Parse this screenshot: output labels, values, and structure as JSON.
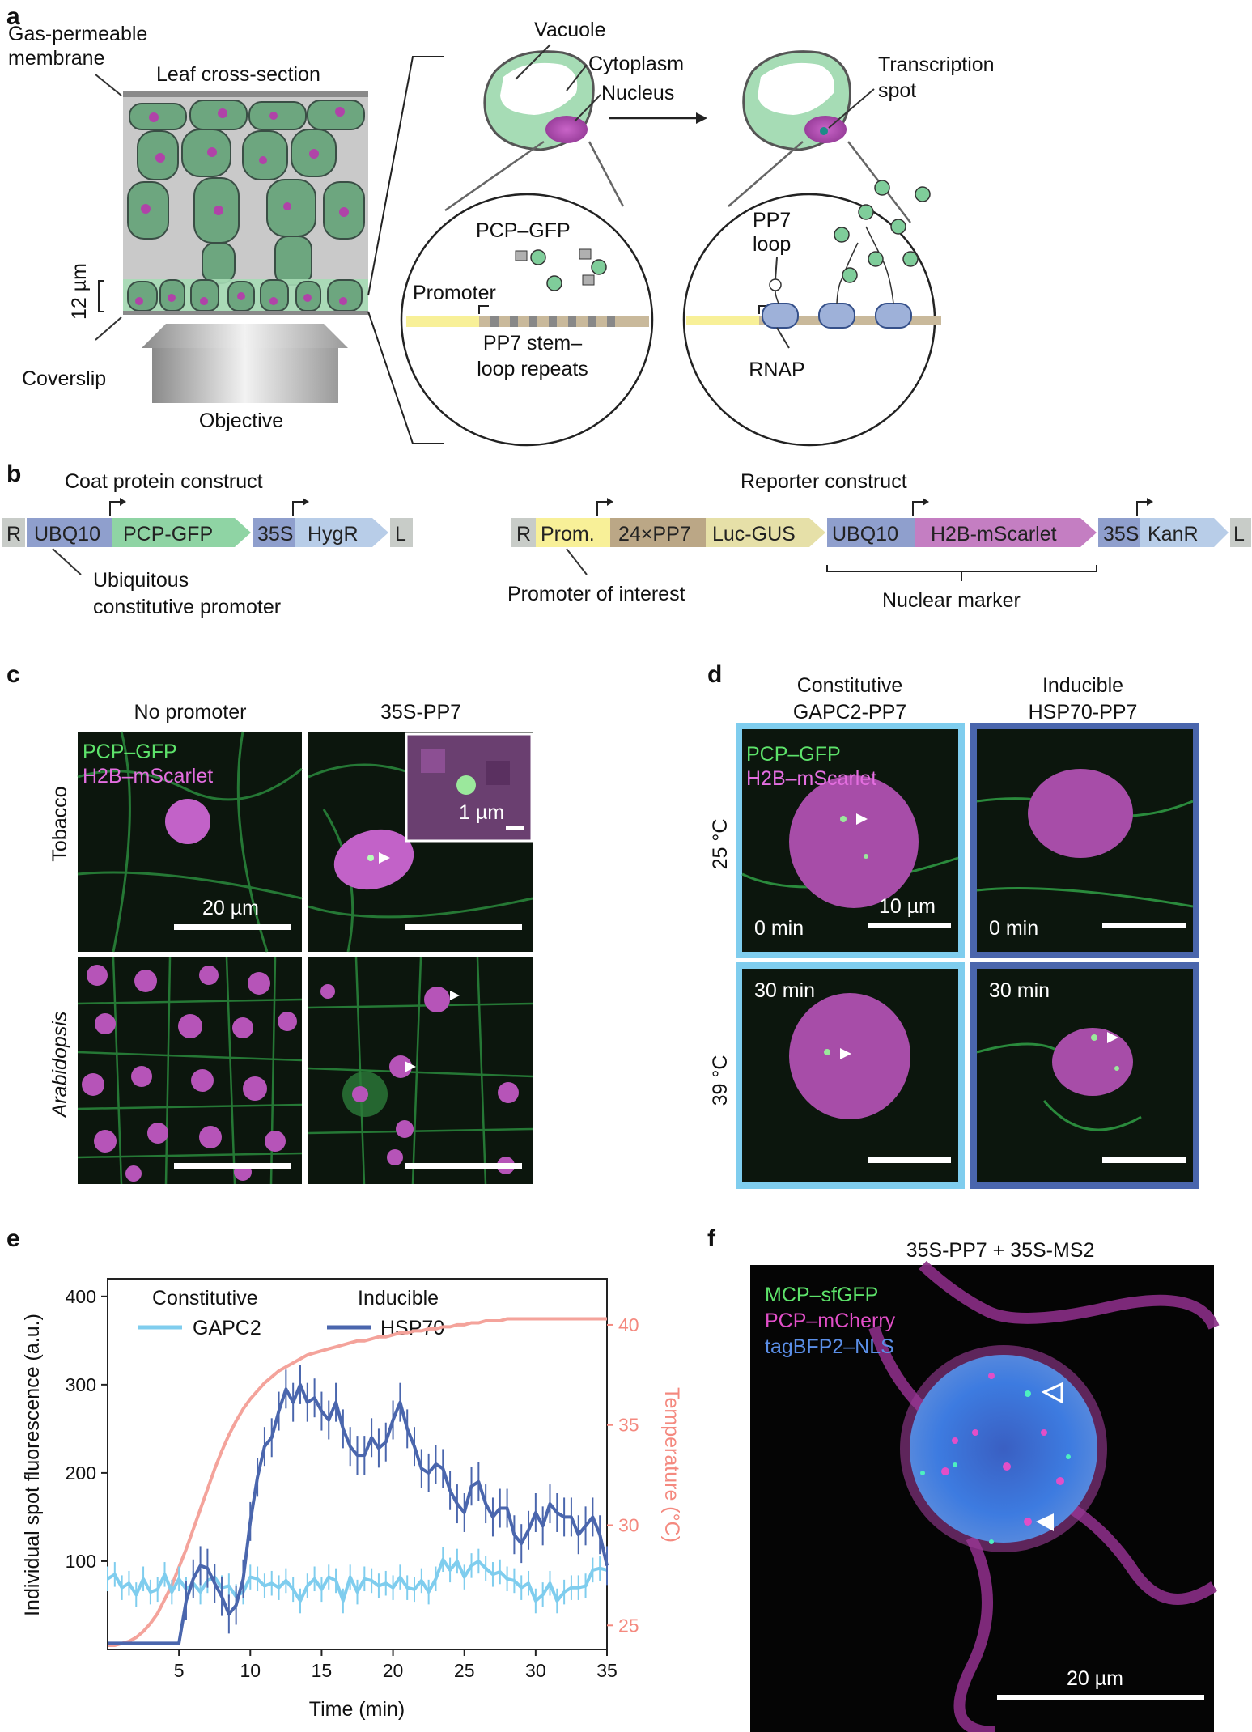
{
  "panel_a": {
    "label": "a",
    "membrane_label": [
      "Gas-permeable",
      "membrane"
    ],
    "leaf_label": "Leaf cross-section",
    "depth_label": "12 µm",
    "coverslip_label": "Coverslip",
    "objective_label": "Objective",
    "vacuole_label": "Vacuole",
    "cytoplasm_label": "Cytoplasm",
    "nucleus_label": "Nucleus",
    "transcription_label": [
      "Transcription",
      "spot"
    ],
    "pcp_gfp_label": "PCP–GFP",
    "promoter_label": "Promoter",
    "stemloop_label": [
      "PP7 stem–",
      "loop repeats"
    ],
    "pp7_loop_label": [
      "PP7",
      "loop"
    ],
    "rnap_label": "RNAP"
  },
  "panel_b": {
    "label": "b",
    "coat_title": "Coat protein construct",
    "coat_parts": [
      "R",
      "UBQ10",
      "PCP-GFP",
      "35S",
      "HygR",
      "L"
    ],
    "ubiq_label": [
      "Ubiquitous",
      "constitutive promoter"
    ],
    "reporter_title": "Reporter construct",
    "reporter_parts": [
      "R",
      "Prom.",
      "24×PP7",
      "Luc-GUS",
      "UBQ10",
      "H2B-mScarlet",
      "35S",
      "KanR",
      "L"
    ],
    "poi_label": "Promoter of interest",
    "nuclear_label": "Nuclear marker"
  },
  "panel_c": {
    "label": "c",
    "col_titles": [
      "No promoter",
      "35S-PP7"
    ],
    "row_titles": [
      "Tobacco",
      "Arabidopsis"
    ],
    "legend": [
      "PCP–GFP",
      "H2B–mScarlet"
    ],
    "scale_main": "20 µm",
    "scale_inset": "1 µm"
  },
  "panel_d": {
    "label": "d",
    "col_titles": [
      [
        "Constitutive",
        "GAPC2-PP7"
      ],
      [
        "Inducible",
        "HSP70-PP7"
      ]
    ],
    "row_titles": [
      "25 °C",
      "39 °C"
    ],
    "legend": [
      "PCP–GFP",
      "H2B–mScarlet"
    ],
    "times": [
      "0 min",
      "0 min",
      "30 min",
      "30 min"
    ],
    "scale": "10 µm"
  },
  "panel_e": {
    "label": "e",
    "legend_headers": [
      "Constitutive",
      "Inducible"
    ],
    "colors": {
      "gapc2": "#7fcdee",
      "hsp70": "#4a66ad",
      "temp": "#f4a39b"
    },
    "chart_data": {
      "type": "line",
      "xlabel": "Time (min)",
      "ylabel": "Individual spot fluorescence (a.u.)",
      "ylabel_right": "Temperature (°C)",
      "xlim": [
        0,
        35
      ],
      "ylim": [
        0,
        420
      ],
      "ylim_right": [
        23.8,
        42.3
      ],
      "xticks": [
        5,
        10,
        15,
        20,
        25,
        30,
        35
      ],
      "yticks": [
        100,
        200,
        300,
        400
      ],
      "yticks_right": [
        25,
        30,
        35,
        40
      ],
      "x": [
        0,
        0.5,
        1,
        1.5,
        2,
        2.5,
        3,
        3.5,
        4,
        4.5,
        5,
        5.5,
        6,
        6.5,
        7,
        7.5,
        8,
        8.5,
        9,
        9.5,
        10,
        10.5,
        11,
        11.5,
        12,
        12.5,
        13,
        13.5,
        14,
        14.5,
        15,
        15.5,
        16,
        16.5,
        17,
        17.5,
        18,
        18.5,
        19,
        19.5,
        20,
        20.5,
        21,
        21.5,
        22,
        22.5,
        23,
        23.5,
        24,
        24.5,
        25,
        25.5,
        26,
        26.5,
        27,
        27.5,
        28,
        28.5,
        29,
        29.5,
        30,
        30.5,
        31,
        31.5,
        32,
        32.5,
        33,
        33.5,
        34,
        34.5,
        35
      ],
      "series": [
        {
          "name": "GAPC2",
          "values": [
            80,
            85,
            70,
            75,
            62,
            80,
            65,
            68,
            85,
            65,
            80,
            68,
            75,
            65,
            78,
            82,
            70,
            72,
            60,
            65,
            82,
            80,
            72,
            75,
            70,
            78,
            68,
            55,
            72,
            80,
            68,
            82,
            78,
            55,
            82,
            65,
            80,
            78,
            72,
            75,
            70,
            82,
            70,
            68,
            78,
            65,
            80,
            102,
            90,
            100,
            82,
            95,
            100,
            92,
            85,
            88,
            80,
            78,
            70,
            75,
            55,
            62,
            75,
            55,
            65,
            70,
            70,
            72,
            90,
            92,
            90
          ]
        },
        {
          "name": "HSP70",
          "values": [
            7,
            7,
            7,
            7,
            7,
            7,
            7,
            7,
            7,
            7,
            7,
            55,
            80,
            95,
            92,
            75,
            60,
            40,
            50,
            80,
            145,
            195,
            230,
            240,
            270,
            295,
            280,
            300,
            280,
            285,
            270,
            260,
            280,
            250,
            230,
            220,
            220,
            240,
            228,
            235,
            260,
            280,
            250,
            230,
            205,
            200,
            210,
            205,
            180,
            165,
            155,
            185,
            190,
            165,
            150,
            160,
            160,
            130,
            120,
            135,
            155,
            140,
            165,
            155,
            150,
            150,
            130,
            140,
            150,
            130,
            95
          ]
        },
        {
          "name": "Temperature",
          "values": [
            24.0,
            24.0,
            24.1,
            24.2,
            24.4,
            24.7,
            25.1,
            25.6,
            26.3,
            27.0,
            27.9,
            28.8,
            29.8,
            30.8,
            31.8,
            32.8,
            33.7,
            34.5,
            35.2,
            35.8,
            36.3,
            36.7,
            37.1,
            37.4,
            37.7,
            37.9,
            38.1,
            38.3,
            38.5,
            38.6,
            38.7,
            38.8,
            38.9,
            39.0,
            39.1,
            39.2,
            39.2,
            39.3,
            39.4,
            39.4,
            39.5,
            39.6,
            39.6,
            39.7,
            39.7,
            39.8,
            39.8,
            39.9,
            39.9,
            40.0,
            40.0,
            40.1,
            40.1,
            40.2,
            40.2,
            40.2,
            40.3,
            40.3,
            40.3,
            40.3,
            40.3,
            40.3,
            40.3,
            40.3,
            40.3,
            40.3,
            40.3,
            40.3,
            40.3,
            40.3,
            40.3
          ]
        }
      ],
      "legend": [
        "GAPC2",
        "HSP70"
      ]
    }
  },
  "panel_f": {
    "label": "f",
    "title": "35S-PP7 + 35S-MS2",
    "legend": [
      "MCP–sfGFP",
      "PCP–mCherry",
      "tagBFP2–NLS"
    ],
    "scale": "20 µm"
  }
}
